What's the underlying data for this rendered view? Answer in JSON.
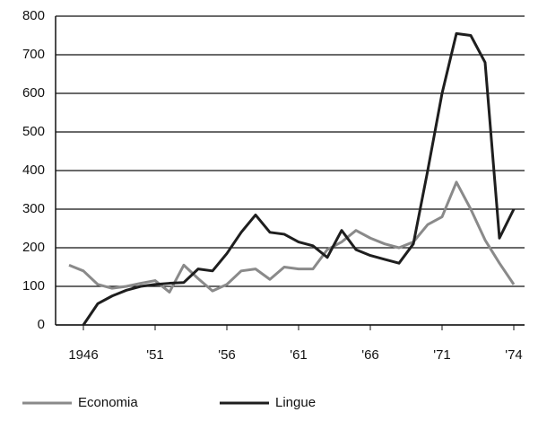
{
  "chart_data": {
    "type": "line",
    "categories": [
      null,
      "1946",
      null,
      null,
      null,
      null,
      "'51",
      null,
      null,
      null,
      null,
      "'56",
      null,
      null,
      null,
      null,
      "'61",
      null,
      null,
      null,
      null,
      "'66",
      null,
      null,
      null,
      null,
      "'71",
      null,
      null,
      null,
      null,
      "'74"
    ],
    "series": [
      {
        "name": "Economia",
        "color": "#8a8a8a",
        "values": [
          155,
          140,
          105,
          95,
          100,
          108,
          115,
          85,
          155,
          120,
          88,
          105,
          140,
          145,
          118,
          150,
          145,
          145,
          195,
          215,
          245,
          225,
          210,
          200,
          215,
          260,
          280,
          370,
          300,
          220,
          160,
          105
        ]
      },
      {
        "name": "Lingue",
        "color": "#1e1e1e",
        "values": [
          null,
          0,
          55,
          75,
          90,
          100,
          105,
          108,
          110,
          145,
          140,
          185,
          240,
          285,
          240,
          235,
          215,
          205,
          175,
          245,
          195,
          180,
          170,
          160,
          210,
          400,
          600,
          755,
          750,
          680,
          225,
          300
        ]
      }
    ],
    "ylim": [
      0,
      800
    ],
    "yticks": [
      0,
      100,
      200,
      300,
      400,
      500,
      600,
      700,
      800
    ],
    "grid": true,
    "legend": "bottom"
  }
}
